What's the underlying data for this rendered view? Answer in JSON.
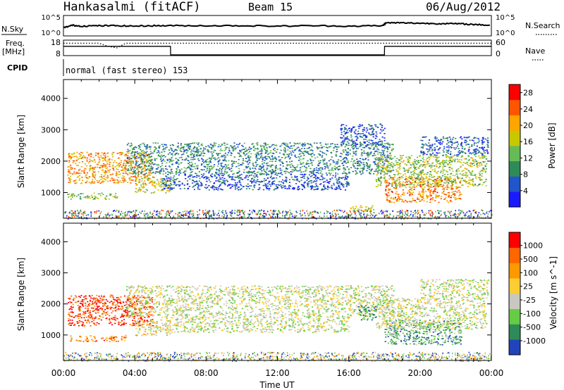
{
  "header": {
    "station": "Hankasalmi (fitACF)",
    "beam": "Beam 15",
    "date": "06/Aug/2012"
  },
  "noise_panel": {
    "left_label": "N.Sky",
    "left_ticks": [
      "10^5",
      "10^0"
    ],
    "right_label": "N.Search",
    "right_ticks": [
      "10^5",
      "10^0"
    ]
  },
  "freq_panel": {
    "left_label_line1": "Freq.",
    "left_label_line2": "[MHz]",
    "left_ticks": [
      "18",
      "8"
    ],
    "right_label": "Nave",
    "right_ticks": [
      "60",
      "0"
    ]
  },
  "cpid_panel": {
    "label": "CPID",
    "text": "normal (fast stereo) 153"
  },
  "chart_data": [
    {
      "type": "heatmap",
      "title": "",
      "xlabel": "",
      "ylabel": "Slant Range [km]",
      "xlim": [
        "00:00",
        "24:00"
      ],
      "ylim": [
        180,
        4600
      ],
      "yticks": [
        "1000",
        "2000",
        "3000",
        "4000"
      ],
      "colorbar": {
        "label": "Power [dB]",
        "ticks": [
          "4",
          "8",
          "12",
          "16",
          "20",
          "24",
          "28"
        ],
        "range": [
          0,
          30
        ],
        "colors": [
          "#1a1aff",
          "#2255cc",
          "#2e8b57",
          "#66bb55",
          "#c8c800",
          "#ffa500",
          "#ff5500",
          "#ff0000"
        ]
      },
      "regions": [
        {
          "t0": 0.2,
          "t1": 5.0,
          "r0": 1300,
          "r1": 2300,
          "level": 0.7
        },
        {
          "t0": 4.0,
          "t1": 6.0,
          "r0": 1000,
          "r1": 1500,
          "level": 0.55
        },
        {
          "t0": 0.2,
          "t1": 3.0,
          "r0": 800,
          "r1": 1000,
          "level": 0.45
        },
        {
          "t0": 3.5,
          "t1": 18.5,
          "r0": 1600,
          "r1": 2600,
          "level": 0.3
        },
        {
          "t0": 5.5,
          "t1": 16.0,
          "r0": 1100,
          "r1": 1600,
          "level": 0.18
        },
        {
          "t0": 16.0,
          "t1": 17.5,
          "r0": 400,
          "r1": 600,
          "level": 0.6
        },
        {
          "t0": 18.0,
          "t1": 22.3,
          "r0": 700,
          "r1": 1500,
          "level": 0.75
        },
        {
          "t0": 17.5,
          "t1": 23.7,
          "r0": 1200,
          "r1": 2200,
          "level": 0.5
        },
        {
          "t0": 20.0,
          "t1": 23.8,
          "r0": 2200,
          "r1": 2800,
          "level": 0.2
        },
        {
          "t0": 15.5,
          "t1": 18.0,
          "r0": 2500,
          "r1": 3200,
          "level": 0.15
        }
      ]
    },
    {
      "type": "heatmap",
      "title": "",
      "xlabel": "Time UT",
      "ylabel": "Slant Range [km]",
      "xlim": [
        "00:00",
        "24:00"
      ],
      "ylim": [
        180,
        4600
      ],
      "xticks": [
        "00:00",
        "04:00",
        "08:00",
        "12:00",
        "16:00",
        "20:00",
        "00:00"
      ],
      "yticks": [
        "1000",
        "2000",
        "3000",
        "4000"
      ],
      "colorbar": {
        "label": "Velocity [m s^-1]",
        "ticks": [
          "1000",
          "500",
          "100",
          "25",
          "-25",
          "-100",
          "-500",
          "-1000"
        ],
        "colors": [
          "#2244bb",
          "#2e8b57",
          "#66cc44",
          "#c8c8c0",
          "#ffcc33",
          "#ff9900",
          "#ff6600",
          "#ff0000"
        ]
      },
      "regions": [
        {
          "t0": 0.2,
          "t1": 5.0,
          "r0": 1300,
          "r1": 2300,
          "level": 0.88
        },
        {
          "t0": 0.2,
          "t1": 3.5,
          "r0": 800,
          "r1": 1000,
          "level": 0.72
        },
        {
          "t0": 4.0,
          "t1": 6.0,
          "r0": 1000,
          "r1": 1500,
          "level": 0.5
        },
        {
          "t0": 3.5,
          "t1": 18.5,
          "r0": 1600,
          "r1": 2600,
          "level": 0.44
        },
        {
          "t0": 5.5,
          "t1": 16.0,
          "r0": 1100,
          "r1": 1600,
          "level": 0.44
        },
        {
          "t0": 16.5,
          "t1": 17.5,
          "r0": 1500,
          "r1": 2000,
          "level": 0.2
        },
        {
          "t0": 18.0,
          "t1": 22.3,
          "r0": 700,
          "r1": 1500,
          "level": 0.25
        },
        {
          "t0": 17.5,
          "t1": 23.7,
          "r0": 1200,
          "r1": 2200,
          "level": 0.44
        },
        {
          "t0": 20.0,
          "t1": 23.8,
          "r0": 2200,
          "r1": 2800,
          "level": 0.44
        }
      ]
    },
    {
      "type": "line",
      "title": "",
      "series": [
        {
          "x": [
            0,
            0.5,
            1,
            2,
            3,
            4,
            5,
            6,
            8,
            10,
            12,
            14,
            16,
            17.9,
            18.1,
            19,
            20,
            21,
            22,
            23,
            24
          ],
          "y": [
            2.0,
            2.6,
            2.4,
            2.5,
            2.5,
            2.4,
            2.5,
            2.5,
            2.5,
            2.5,
            2.4,
            2.5,
            2.4,
            2.5,
            3.2,
            3.2,
            3.1,
            3.0,
            3.0,
            2.8,
            2.6
          ]
        }
      ],
      "ylim": [
        0,
        5
      ]
    },
    {
      "type": "line",
      "title": "",
      "series": [
        {
          "x": [
            0,
            0.5,
            6.0,
            6.01,
            18.0,
            18.01,
            24
          ],
          "y": [
            14,
            14,
            14,
            8.5,
            8.5,
            14,
            14
          ]
        },
        {
          "x": [
            0,
            2.0,
            2.5,
            3.0,
            3.5,
            24
          ],
          "y": [
            16,
            16,
            14,
            13,
            16,
            16
          ]
        }
      ],
      "ylim": [
        8,
        18
      ]
    }
  ]
}
